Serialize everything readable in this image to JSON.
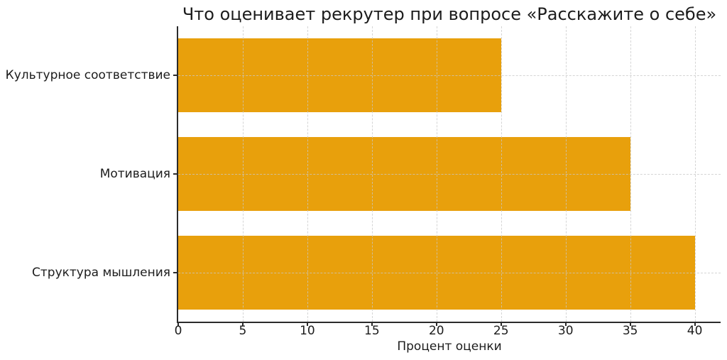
{
  "figure": {
    "background": "#ffffff"
  },
  "chart_data": {
    "type": "bar",
    "orientation": "horizontal",
    "title": "Что оценивает рекрутер при вопросе «Расскажите о себе»",
    "categories": [
      "Культурное соответствие",
      "Мотивация",
      "Структура мышления"
    ],
    "values": [
      25,
      35,
      40
    ],
    "xlabel": "Процент оценки",
    "ylabel": "",
    "xticks": [
      0,
      5,
      10,
      15,
      20,
      25,
      30,
      35,
      40
    ],
    "xlim": [
      0,
      42
    ],
    "grid": true,
    "grid_style": "dashed",
    "legend": null,
    "bar_color": "#E8A00C",
    "axis_color": "#2b2b2b",
    "grid_color": "#c8c8c8",
    "text_color": "#1c1c1c"
  }
}
